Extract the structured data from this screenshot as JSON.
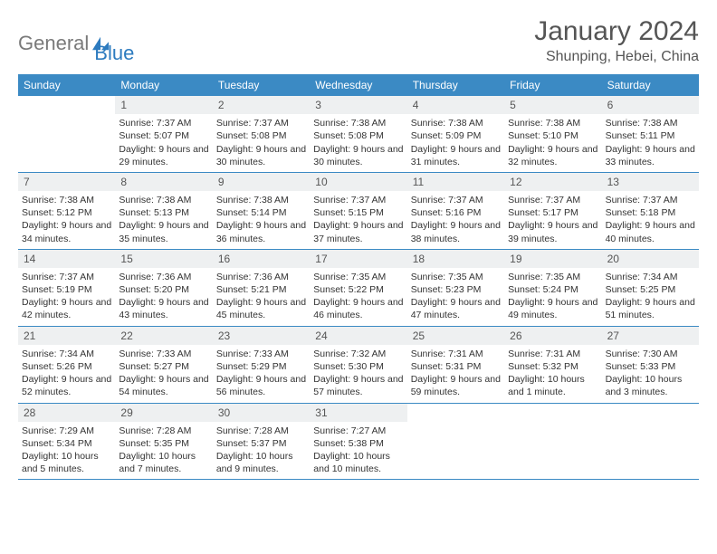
{
  "logo": {
    "text1": "General",
    "text2": "Blue"
  },
  "title": "January 2024",
  "location": "Shunping, Hebei, China",
  "colors": {
    "header_bg": "#3b8ac4",
    "header_text": "#ffffff",
    "daynum_bg": "#eef0f1",
    "body_text": "#333333",
    "rule": "#3b8ac4",
    "logo_gray": "#7a7a7a",
    "logo_blue": "#2d7bbf"
  },
  "weekdays": [
    "Sunday",
    "Monday",
    "Tuesday",
    "Wednesday",
    "Thursday",
    "Friday",
    "Saturday"
  ],
  "layout": {
    "columns": 7,
    "first_day_index": 1,
    "days_in_month": 31
  },
  "days": [
    {
      "n": 1,
      "sunrise": "7:37 AM",
      "sunset": "5:07 PM",
      "daylight": "9 hours and 29 minutes."
    },
    {
      "n": 2,
      "sunrise": "7:37 AM",
      "sunset": "5:08 PM",
      "daylight": "9 hours and 30 minutes."
    },
    {
      "n": 3,
      "sunrise": "7:38 AM",
      "sunset": "5:08 PM",
      "daylight": "9 hours and 30 minutes."
    },
    {
      "n": 4,
      "sunrise": "7:38 AM",
      "sunset": "5:09 PM",
      "daylight": "9 hours and 31 minutes."
    },
    {
      "n": 5,
      "sunrise": "7:38 AM",
      "sunset": "5:10 PM",
      "daylight": "9 hours and 32 minutes."
    },
    {
      "n": 6,
      "sunrise": "7:38 AM",
      "sunset": "5:11 PM",
      "daylight": "9 hours and 33 minutes."
    },
    {
      "n": 7,
      "sunrise": "7:38 AM",
      "sunset": "5:12 PM",
      "daylight": "9 hours and 34 minutes."
    },
    {
      "n": 8,
      "sunrise": "7:38 AM",
      "sunset": "5:13 PM",
      "daylight": "9 hours and 35 minutes."
    },
    {
      "n": 9,
      "sunrise": "7:38 AM",
      "sunset": "5:14 PM",
      "daylight": "9 hours and 36 minutes."
    },
    {
      "n": 10,
      "sunrise": "7:37 AM",
      "sunset": "5:15 PM",
      "daylight": "9 hours and 37 minutes."
    },
    {
      "n": 11,
      "sunrise": "7:37 AM",
      "sunset": "5:16 PM",
      "daylight": "9 hours and 38 minutes."
    },
    {
      "n": 12,
      "sunrise": "7:37 AM",
      "sunset": "5:17 PM",
      "daylight": "9 hours and 39 minutes."
    },
    {
      "n": 13,
      "sunrise": "7:37 AM",
      "sunset": "5:18 PM",
      "daylight": "9 hours and 40 minutes."
    },
    {
      "n": 14,
      "sunrise": "7:37 AM",
      "sunset": "5:19 PM",
      "daylight": "9 hours and 42 minutes."
    },
    {
      "n": 15,
      "sunrise": "7:36 AM",
      "sunset": "5:20 PM",
      "daylight": "9 hours and 43 minutes."
    },
    {
      "n": 16,
      "sunrise": "7:36 AM",
      "sunset": "5:21 PM",
      "daylight": "9 hours and 45 minutes."
    },
    {
      "n": 17,
      "sunrise": "7:35 AM",
      "sunset": "5:22 PM",
      "daylight": "9 hours and 46 minutes."
    },
    {
      "n": 18,
      "sunrise": "7:35 AM",
      "sunset": "5:23 PM",
      "daylight": "9 hours and 47 minutes."
    },
    {
      "n": 19,
      "sunrise": "7:35 AM",
      "sunset": "5:24 PM",
      "daylight": "9 hours and 49 minutes."
    },
    {
      "n": 20,
      "sunrise": "7:34 AM",
      "sunset": "5:25 PM",
      "daylight": "9 hours and 51 minutes."
    },
    {
      "n": 21,
      "sunrise": "7:34 AM",
      "sunset": "5:26 PM",
      "daylight": "9 hours and 52 minutes."
    },
    {
      "n": 22,
      "sunrise": "7:33 AM",
      "sunset": "5:27 PM",
      "daylight": "9 hours and 54 minutes."
    },
    {
      "n": 23,
      "sunrise": "7:33 AM",
      "sunset": "5:29 PM",
      "daylight": "9 hours and 56 minutes."
    },
    {
      "n": 24,
      "sunrise": "7:32 AM",
      "sunset": "5:30 PM",
      "daylight": "9 hours and 57 minutes."
    },
    {
      "n": 25,
      "sunrise": "7:31 AM",
      "sunset": "5:31 PM",
      "daylight": "9 hours and 59 minutes."
    },
    {
      "n": 26,
      "sunrise": "7:31 AM",
      "sunset": "5:32 PM",
      "daylight": "10 hours and 1 minute."
    },
    {
      "n": 27,
      "sunrise": "7:30 AM",
      "sunset": "5:33 PM",
      "daylight": "10 hours and 3 minutes."
    },
    {
      "n": 28,
      "sunrise": "7:29 AM",
      "sunset": "5:34 PM",
      "daylight": "10 hours and 5 minutes."
    },
    {
      "n": 29,
      "sunrise": "7:28 AM",
      "sunset": "5:35 PM",
      "daylight": "10 hours and 7 minutes."
    },
    {
      "n": 30,
      "sunrise": "7:28 AM",
      "sunset": "5:37 PM",
      "daylight": "10 hours and 9 minutes."
    },
    {
      "n": 31,
      "sunrise": "7:27 AM",
      "sunset": "5:38 PM",
      "daylight": "10 hours and 10 minutes."
    }
  ],
  "labels": {
    "sunrise": "Sunrise:",
    "sunset": "Sunset:",
    "daylight": "Daylight:"
  }
}
